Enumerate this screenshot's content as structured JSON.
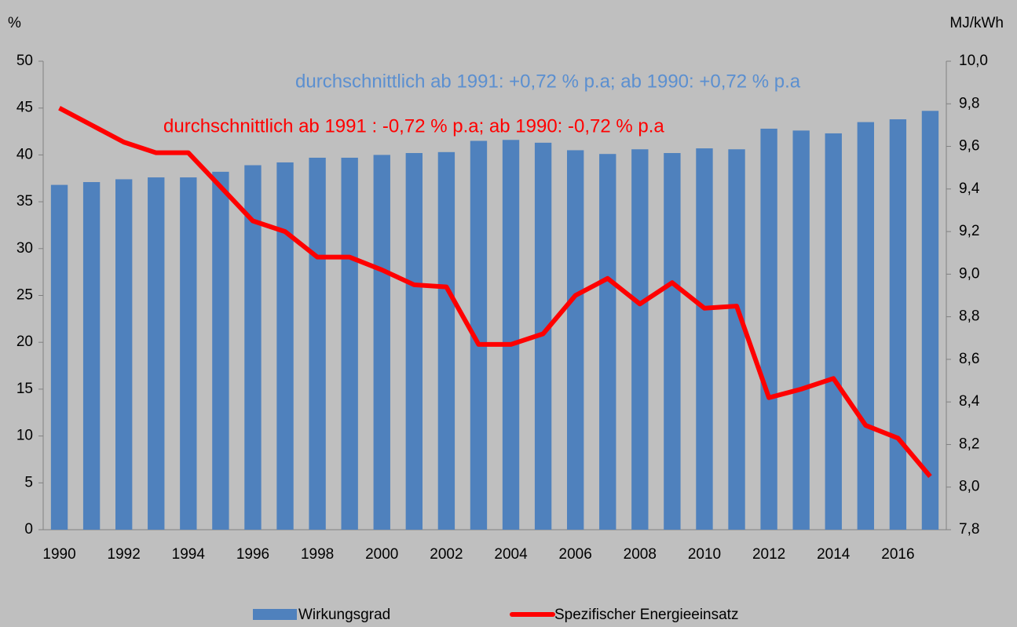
{
  "chart_data": {
    "type": "bar",
    "y_axis_label": "%",
    "y2_axis_label": "MJ/kWh",
    "annotations": [
      {
        "text": "durchschnittlich ab 1991: +0,72 % p.a; ab 1990: +0,72 % p.a",
        "color": "#5b8fd0"
      },
      {
        "text": "durchschnittlich ab 1991 :  -0,72 % p.a; ab 1990: -0,72 % p.a",
        "color": "#ff0000"
      }
    ],
    "categories": [
      "1990",
      null,
      "1992",
      null,
      "1994",
      null,
      "1996",
      null,
      "1998",
      null,
      "2000",
      null,
      "2002",
      null,
      "2004",
      null,
      "2006",
      null,
      "2008",
      null,
      "2010",
      null,
      "2012",
      null,
      "2014",
      null,
      "2016",
      null
    ],
    "series": [
      {
        "name": "Wirkungsgrad",
        "type": "bar",
        "color": "#4f81bd",
        "values": [
          36.8,
          37.1,
          37.4,
          37.6,
          37.6,
          38.2,
          38.9,
          39.2,
          39.7,
          39.7,
          40.0,
          40.2,
          40.3,
          41.5,
          41.6,
          41.3,
          40.5,
          40.1,
          40.6,
          40.2,
          40.7,
          40.6,
          42.8,
          42.6,
          42.3,
          43.5,
          43.8,
          44.7
        ]
      },
      {
        "name": "Spezifischer Energieeinsatz",
        "type": "line",
        "axis": "y2",
        "color": "#ff0000",
        "values": [
          9.78,
          9.7,
          9.62,
          9.57,
          9.57,
          9.41,
          9.25,
          9.2,
          9.08,
          9.08,
          9.02,
          8.95,
          8.94,
          8.67,
          8.67,
          8.72,
          8.9,
          8.98,
          8.86,
          8.96,
          8.84,
          8.85,
          8.42,
          8.46,
          8.51,
          8.29,
          8.23,
          8.05
        ]
      }
    ],
    "ylim": [
      0,
      50
    ],
    "yticks": [
      0,
      5,
      10,
      15,
      20,
      25,
      30,
      35,
      40,
      45,
      50
    ],
    "y2lim": [
      7.8,
      10.0
    ],
    "y2ticks": [
      {
        "value": 7.8,
        "label": "7,8"
      },
      {
        "value": 8.0,
        "label": "8,0"
      },
      {
        "value": 8.2,
        "label": "8,2"
      },
      {
        "value": 8.4,
        "label": "8,4"
      },
      {
        "value": 8.6,
        "label": "8,6"
      },
      {
        "value": 8.8,
        "label": "8,8"
      },
      {
        "value": 9.0,
        "label": "9,0"
      },
      {
        "value": 9.2,
        "label": "9,2"
      },
      {
        "value": 9.4,
        "label": "9,4"
      },
      {
        "value": 9.6,
        "label": "9,6"
      },
      {
        "value": 9.8,
        "label": "9,8"
      },
      {
        "value": 10.0,
        "label": "10,0"
      }
    ],
    "grid": false,
    "legend": "bottom"
  }
}
